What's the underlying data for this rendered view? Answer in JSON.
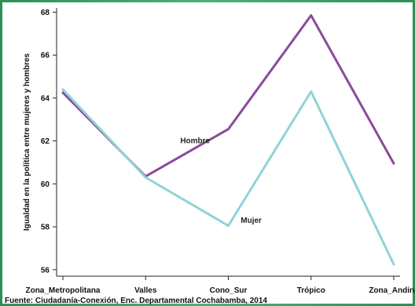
{
  "chart_data": {
    "type": "line",
    "categories": [
      "Zona_Metropolitana",
      "Valles",
      "Cono_Sur",
      "Trópico",
      "Zona_Andina"
    ],
    "series": [
      {
        "name": "Hombre",
        "values": [
          64.25,
          60.35,
          62.55,
          67.85,
          60.95
        ],
        "color": "#8b4a9c"
      },
      {
        "name": "Mujer",
        "values": [
          64.4,
          60.3,
          58.05,
          64.3,
          56.25
        ],
        "color": "#8fd3d6",
        "dashed": true
      }
    ],
    "ylabel": "Igualdad en la política entre mujeres y hombres",
    "xlabel": "",
    "ylim": [
      55.7,
      68.2
    ],
    "yticks": [
      56,
      58,
      60,
      62,
      64,
      66,
      68
    ],
    "grid": false,
    "source": "Fuente: Ciudadanía-Conexión, Enc. Departamental Cochabamba, 2014"
  }
}
